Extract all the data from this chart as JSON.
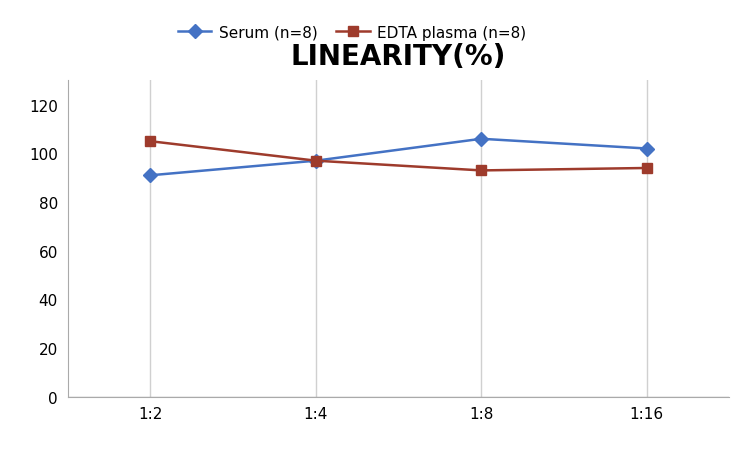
{
  "title": "LINEARITY(%)",
  "title_fontsize": 20,
  "title_fontweight": "bold",
  "x_labels": [
    "1:2",
    "1:4",
    "1:8",
    "1:16"
  ],
  "serum_values": [
    91,
    97,
    106,
    102
  ],
  "edta_values": [
    105,
    97,
    93,
    94
  ],
  "serum_color": "#4472C4",
  "edta_color": "#9E3B2C",
  "serum_label": "Serum (n=8)",
  "edta_label": "EDTA plasma (n=8)",
  "ylim": [
    0,
    130
  ],
  "yticks": [
    0,
    20,
    40,
    60,
    80,
    100,
    120
  ],
  "background_color": "#FFFFFF",
  "grid_color": "#D0D0D0",
  "legend_fontsize": 11,
  "axis_fontsize": 11,
  "marker_size": 7,
  "line_width": 1.8,
  "spine_color": "#AAAAAA"
}
